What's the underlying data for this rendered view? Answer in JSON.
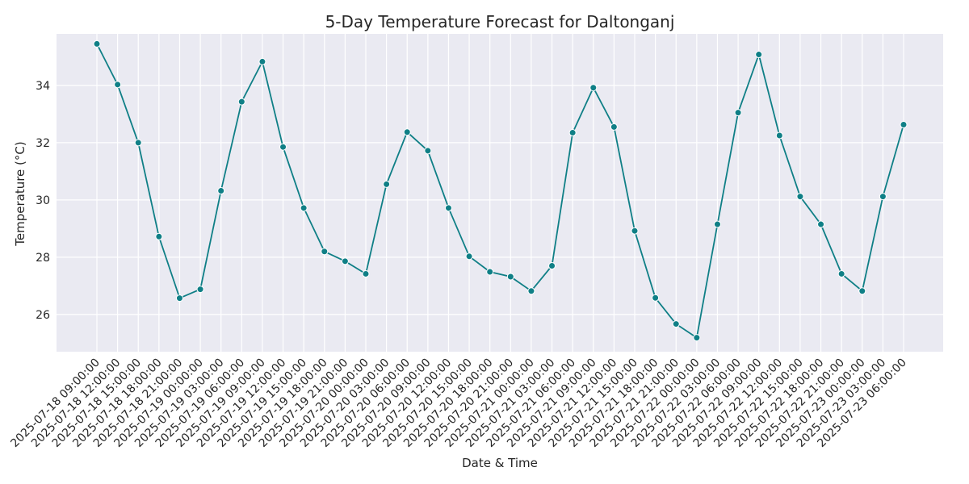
{
  "chart_data": {
    "type": "line",
    "title": "5-Day Temperature Forecast for Daltonganj",
    "xlabel": "Date & Time",
    "ylabel": "Temperature (°C)",
    "ylim": [
      24.7,
      35.8
    ],
    "yticks": [
      26,
      28,
      30,
      32,
      34
    ],
    "grid": true,
    "colors": {
      "line": "#0f7f86",
      "background": "#eaeaf2",
      "grid": "#ffffff"
    },
    "x": [
      "2025-07-18 09:00:00",
      "2025-07-18 12:00:00",
      "2025-07-18 15:00:00",
      "2025-07-18 18:00:00",
      "2025-07-18 21:00:00",
      "2025-07-19 00:00:00",
      "2025-07-19 03:00:00",
      "2025-07-19 06:00:00",
      "2025-07-19 09:00:00",
      "2025-07-19 12:00:00",
      "2025-07-19 15:00:00",
      "2025-07-19 18:00:00",
      "2025-07-19 21:00:00",
      "2025-07-20 00:00:00",
      "2025-07-20 03:00:00",
      "2025-07-20 06:00:00",
      "2025-07-20 09:00:00",
      "2025-07-20 12:00:00",
      "2025-07-20 15:00:00",
      "2025-07-20 18:00:00",
      "2025-07-20 21:00:00",
      "2025-07-21 00:00:00",
      "2025-07-21 03:00:00",
      "2025-07-21 06:00:00",
      "2025-07-21 09:00:00",
      "2025-07-21 12:00:00",
      "2025-07-21 15:00:00",
      "2025-07-21 18:00:00",
      "2025-07-21 21:00:00",
      "2025-07-22 00:00:00",
      "2025-07-22 03:00:00",
      "2025-07-22 06:00:00",
      "2025-07-22 09:00:00",
      "2025-07-22 12:00:00",
      "2025-07-22 15:00:00",
      "2025-07-22 18:00:00",
      "2025-07-22 21:00:00",
      "2025-07-23 00:00:00",
      "2025-07-23 03:00:00",
      "2025-07-23 06:00:00"
    ],
    "values": [
      35.45,
      34.03,
      32.0,
      28.72,
      26.57,
      26.88,
      30.32,
      33.43,
      34.83,
      31.85,
      29.72,
      28.2,
      27.86,
      27.42,
      30.55,
      32.37,
      31.72,
      29.72,
      28.03,
      27.49,
      27.32,
      26.82,
      27.7,
      32.35,
      33.92,
      32.55,
      28.92,
      26.58,
      25.67,
      25.19,
      29.15,
      33.05,
      35.08,
      32.25,
      30.12,
      29.15,
      27.42,
      26.82,
      30.12,
      32.63
    ]
  }
}
